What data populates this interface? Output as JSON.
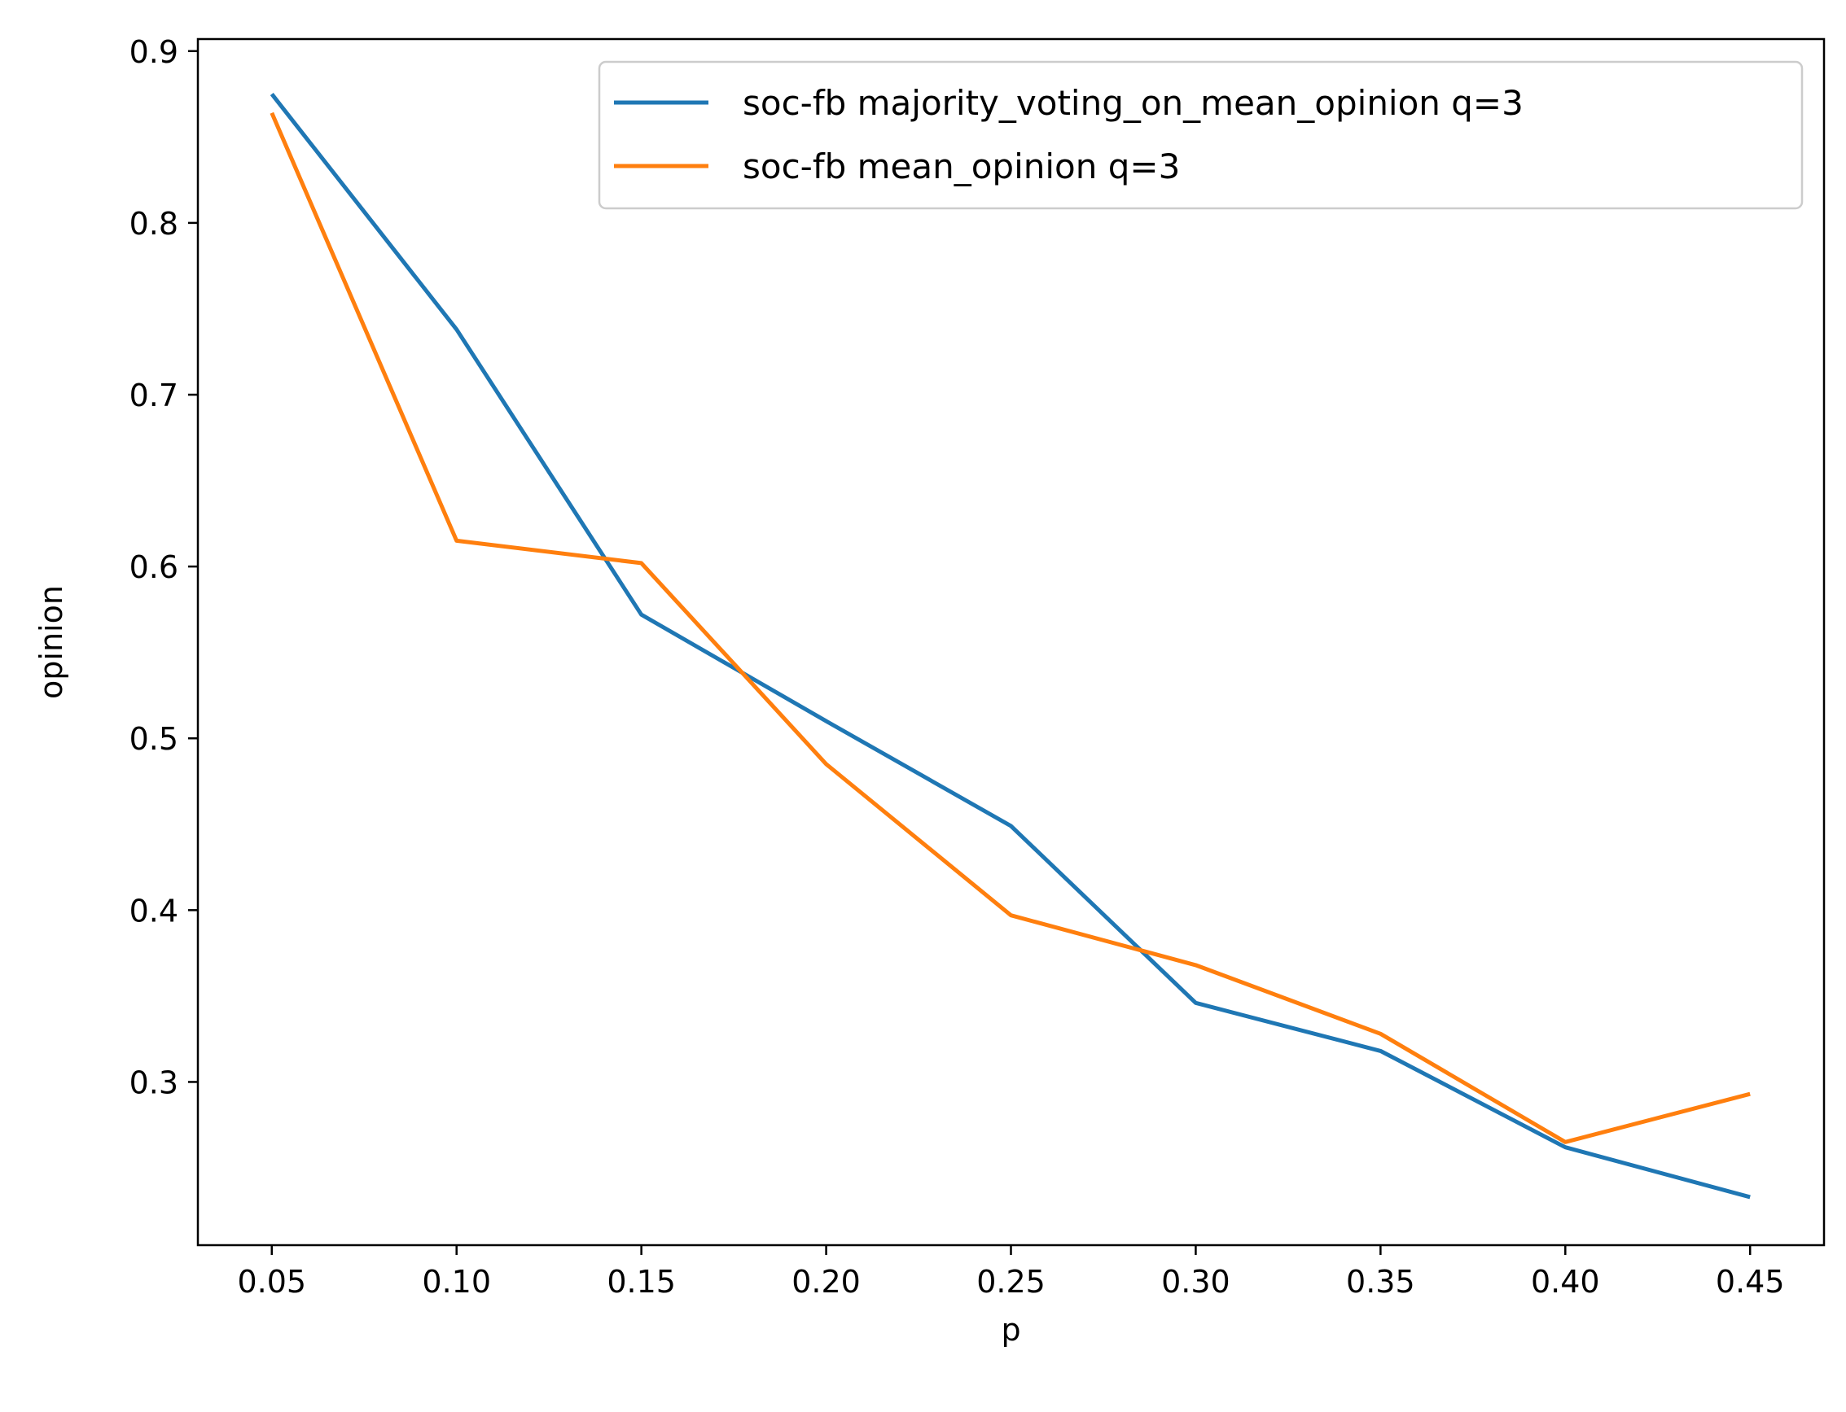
{
  "chart_data": {
    "type": "line",
    "title": "",
    "xlabel": "p",
    "ylabel": "opinion",
    "x": [
      0.05,
      0.1,
      0.15,
      0.2,
      0.25,
      0.3,
      0.35,
      0.4,
      0.45
    ],
    "x_tick_labels": [
      "0.05",
      "0.10",
      "0.15",
      "0.20",
      "0.25",
      "0.30",
      "0.35",
      "0.40",
      "0.45"
    ],
    "y_ticks": [
      0.3,
      0.4,
      0.5,
      0.6,
      0.7,
      0.8,
      0.9
    ],
    "y_tick_labels": [
      "0.3",
      "0.4",
      "0.5",
      "0.6",
      "0.7",
      "0.8",
      "0.9"
    ],
    "xlim": [
      0.03,
      0.47
    ],
    "ylim": [
      0.205,
      0.907
    ],
    "grid": false,
    "legend_position": "top-right",
    "series": [
      {
        "name": "soc-fb majority_voting_on_mean_opinion q=3",
        "color": "#1f77b4",
        "values": [
          0.875,
          0.738,
          0.572,
          0.51,
          0.449,
          0.346,
          0.318,
          0.262,
          0.233
        ]
      },
      {
        "name": "soc-fb mean_opinion q=3",
        "color": "#ff7f0e",
        "values": [
          0.864,
          0.615,
          0.602,
          0.485,
          0.397,
          0.368,
          0.328,
          0.265,
          0.293
        ]
      }
    ]
  }
}
